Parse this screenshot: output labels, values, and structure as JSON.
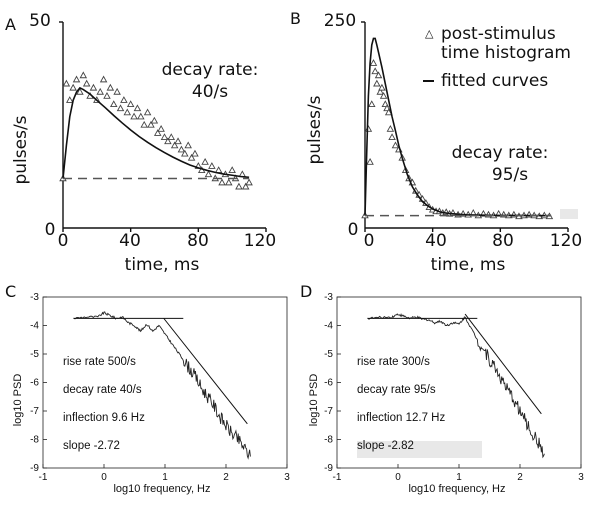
{
  "chart_data": [
    {
      "type": "scatter",
      "panel_label": "A",
      "xlabel": "time, ms",
      "ylabel": "pulses/s",
      "xlim": [
        0,
        120
      ],
      "ylim": [
        0,
        50
      ],
      "xticks": [
        "0",
        "40",
        "80",
        "120"
      ],
      "yticks": [
        "0",
        "50"
      ],
      "annotation": [
        "decay rate:",
        "40/s"
      ],
      "series": [
        {
          "kind": "markers",
          "x": [
            0,
            2,
            4,
            6,
            8,
            10,
            12,
            14,
            16,
            18,
            20,
            22,
            24,
            26,
            28,
            30,
            32,
            34,
            36,
            38,
            40,
            42,
            44,
            46,
            48,
            50,
            52,
            54,
            56,
            58,
            60,
            62,
            64,
            66,
            68,
            70,
            72,
            74,
            76,
            78,
            80,
            82,
            84,
            86,
            88,
            90,
            92,
            94,
            96,
            98,
            100,
            102,
            104,
            106,
            108,
            110
          ],
          "y": [
            12,
            35,
            31,
            34,
            36,
            33,
            37,
            35,
            32,
            34,
            31,
            33,
            36,
            32,
            34,
            30,
            33,
            29,
            31,
            28,
            30,
            27,
            29,
            27,
            25,
            28,
            25,
            26,
            23,
            24,
            22,
            21,
            22,
            20,
            21,
            19,
            18,
            20,
            17,
            18,
            15,
            14,
            16,
            13,
            15,
            12,
            14,
            11,
            13,
            11,
            14,
            12,
            10,
            13,
            10,
            11
          ]
        },
        {
          "kind": "line",
          "x": [
            0,
            2,
            4,
            6,
            8,
            10,
            12,
            16,
            20,
            25,
            30,
            35,
            40,
            45,
            50,
            55,
            60,
            65,
            70,
            75,
            80,
            85,
            90,
            95,
            100,
            105,
            110
          ],
          "y": [
            12,
            20,
            27,
            31,
            33,
            34,
            33.6,
            32.5,
            31,
            29.2,
            27.3,
            25.5,
            23.8,
            22.2,
            20.8,
            19.5,
            18.3,
            17.2,
            16.2,
            15.3,
            14.6,
            14,
            13.5,
            13.1,
            12.8,
            12.5,
            12.3
          ]
        },
        {
          "kind": "dashed",
          "x": [
            0,
            110
          ],
          "y": [
            12,
            12
          ]
        }
      ]
    },
    {
      "type": "scatter",
      "panel_label": "B",
      "xlabel": "time, ms",
      "ylabel": "pulses/s",
      "xlim": [
        0,
        120
      ],
      "ylim": [
        0,
        250
      ],
      "xticks": [
        "0",
        "40",
        "80",
        "120"
      ],
      "yticks": [
        "0",
        "250"
      ],
      "annotation": [
        "decay rate:",
        "95/s"
      ],
      "legend": [
        "post-stimulus",
        "time histogram",
        "fitted curves"
      ],
      "series": [
        {
          "kind": "markers",
          "x": [
            0,
            2,
            3,
            4,
            5,
            6,
            7,
            8,
            9,
            10,
            11,
            12,
            13,
            14,
            15,
            16,
            18,
            20,
            22,
            24,
            26,
            28,
            30,
            32,
            34,
            36,
            38,
            40,
            42,
            44,
            46,
            48,
            50,
            52,
            55,
            58,
            61,
            64,
            67,
            70,
            73,
            76,
            79,
            82,
            85,
            88,
            91,
            94,
            97,
            100,
            103,
            106,
            109
          ],
          "y": [
            15,
            120,
            80,
            150,
            200,
            190,
            175,
            185,
            165,
            170,
            160,
            150,
            145,
            140,
            120,
            110,
            100,
            95,
            85,
            70,
            60,
            55,
            45,
            40,
            35,
            30,
            25,
            22,
            20,
            20,
            18,
            19,
            17,
            18,
            16,
            17,
            16,
            18,
            15,
            17,
            16,
            15,
            17,
            16,
            15,
            16,
            14,
            15,
            16,
            15,
            14,
            15,
            14
          ]
        },
        {
          "kind": "line",
          "x": [
            0,
            1,
            2,
            3,
            4,
            5,
            6,
            7,
            8,
            10,
            12,
            14,
            16,
            18,
            20,
            22,
            25,
            28,
            31,
            34,
            37,
            40,
            45,
            50,
            60,
            70,
            80,
            90,
            100,
            110
          ],
          "y": [
            15,
            90,
            160,
            200,
            222,
            230,
            230,
            222,
            213,
            195,
            175,
            155,
            135,
            118,
            100,
            85,
            65,
            50,
            40,
            32,
            27,
            23,
            19,
            17.5,
            16,
            15.5,
            15.3,
            15.2,
            15.1,
            15
          ]
        },
        {
          "kind": "dashed",
          "x": [
            0,
            110
          ],
          "y": [
            15,
            15
          ]
        }
      ]
    },
    {
      "type": "line",
      "panel_label": "C",
      "xlabel": "log10 frequency, Hz",
      "ylabel": "log10 PSD",
      "xlim": [
        -1,
        3
      ],
      "ylim": [
        -9,
        -3
      ],
      "xticks": [
        "-1",
        "0",
        "1",
        "2",
        "3"
      ],
      "yticks": [
        "-3",
        "-4",
        "-5",
        "-6",
        "-7",
        "-8",
        "-9"
      ],
      "notes": [
        "rise rate 500/s",
        "decay rate 40/s",
        "inflection 9.6 Hz",
        "slope -2.72"
      ],
      "series": [
        {
          "kind": "psd",
          "x": [
            -0.5,
            -0.3,
            -0.1,
            0.0,
            0.1,
            0.2,
            0.3,
            0.4,
            0.5,
            0.6,
            0.7,
            0.8,
            0.9,
            1.0,
            1.1,
            1.2,
            1.3,
            1.4,
            1.5,
            1.6,
            1.7,
            1.8,
            1.9,
            2.0,
            2.1,
            2.2,
            2.3,
            2.4
          ],
          "y": [
            -3.75,
            -3.7,
            -3.7,
            -3.55,
            -3.65,
            -3.75,
            -3.7,
            -3.9,
            -4.0,
            -4.2,
            -3.95,
            -4.2,
            -4.0,
            -4.3,
            -4.6,
            -4.9,
            -5.2,
            -5.5,
            -5.8,
            -6.2,
            -6.5,
            -6.8,
            -7.2,
            -7.5,
            -7.8,
            -8.0,
            -8.3,
            -8.6
          ]
        },
        {
          "kind": "fit-flat",
          "x": [
            -0.5,
            1.3
          ],
          "y": [
            -3.75,
            -3.75
          ]
        },
        {
          "kind": "fit-slope",
          "x": [
            0.98,
            2.35
          ],
          "y": [
            -3.75,
            -7.45
          ]
        }
      ]
    },
    {
      "type": "line",
      "panel_label": "D",
      "xlabel": "log10 frequency, Hz",
      "ylabel": "log10 PSD",
      "xlim": [
        -1,
        3
      ],
      "ylim": [
        -9,
        -3
      ],
      "xticks": [
        "-1",
        "0",
        "1",
        "2",
        "3"
      ],
      "yticks": [
        "-3",
        "-4",
        "-5",
        "-6",
        "-7",
        "-8",
        "-9"
      ],
      "notes": [
        "rise rate 300/s",
        "decay rate 95/s",
        "inflection 12.7 Hz",
        "slope -2.82"
      ],
      "series": [
        {
          "kind": "psd",
          "x": [
            -0.5,
            -0.3,
            -0.1,
            0.0,
            0.1,
            0.2,
            0.3,
            0.4,
            0.5,
            0.6,
            0.7,
            0.8,
            0.9,
            1.0,
            1.1,
            1.2,
            1.3,
            1.4,
            1.5,
            1.6,
            1.7,
            1.8,
            1.9,
            2.0,
            2.1,
            2.2,
            2.3,
            2.4
          ],
          "y": [
            -3.75,
            -3.72,
            -3.7,
            -3.6,
            -3.68,
            -3.75,
            -3.7,
            -3.78,
            -3.8,
            -3.9,
            -3.85,
            -4.0,
            -3.9,
            -3.95,
            -3.7,
            -4.1,
            -4.5,
            -4.8,
            -5.2,
            -5.5,
            -5.9,
            -6.3,
            -6.6,
            -7.0,
            -7.4,
            -7.8,
            -8.1,
            -8.5
          ]
        },
        {
          "kind": "fit-flat",
          "x": [
            -0.5,
            1.3
          ],
          "y": [
            -3.75,
            -3.75
          ]
        },
        {
          "kind": "fit-slope",
          "x": [
            1.1,
            2.35
          ],
          "y": [
            -3.6,
            -7.1
          ]
        }
      ]
    }
  ]
}
